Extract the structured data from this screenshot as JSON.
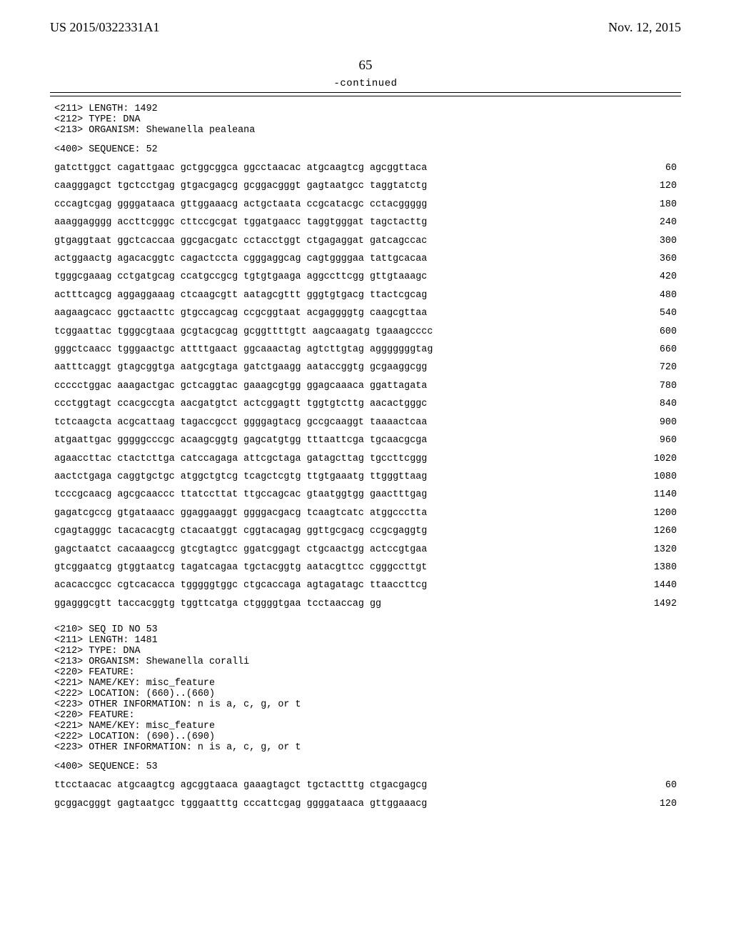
{
  "header": {
    "left": "US 2015/0322331A1",
    "right": "Nov. 12, 2015"
  },
  "pageNumber": "65",
  "continued": "-continued",
  "meta1": [
    "<211> LENGTH: 1492",
    "<212> TYPE: DNA",
    "<213> ORGANISM: Shewanella pealeana"
  ],
  "seqHeader1": "<400> SEQUENCE: 52",
  "sequence1": [
    {
      "t": "gatcttggct cagattgaac gctggcggca ggcctaacac atgcaagtcg agcggttaca",
      "n": "60"
    },
    {
      "t": "caagggagct tgctcctgag gtgacgagcg gcggacgggt gagtaatgcc taggtatctg",
      "n": "120"
    },
    {
      "t": "cccagtcgag ggggataaca gttggaaacg actgctaata ccgcatacgc cctacggggg",
      "n": "180"
    },
    {
      "t": "aaaggagggg accttcgggc cttccgcgat tggatgaacc taggtgggat tagctacttg",
      "n": "240"
    },
    {
      "t": "gtgaggtaat ggctcaccaa ggcgacgatc cctacctggt ctgagaggat gatcagccac",
      "n": "300"
    },
    {
      "t": "actggaactg agacacggtc cagactccta cgggaggcag cagtggggaa tattgcacaa",
      "n": "360"
    },
    {
      "t": "tgggcgaaag cctgatgcag ccatgccgcg tgtgtgaaga aggccttcgg gttgtaaagc",
      "n": "420"
    },
    {
      "t": "actttcagcg aggaggaaag ctcaagcgtt aatagcgttt gggtgtgacg ttactcgcag",
      "n": "480"
    },
    {
      "t": "aagaagcacc ggctaacttc gtgccagcag ccgcggtaat acgaggggtg caagcgttaa",
      "n": "540"
    },
    {
      "t": "tcggaattac tgggcgtaaa gcgtacgcag gcggttttgtt aagcaagatg tgaaagcccc",
      "n": "600"
    },
    {
      "t": "gggctcaacc tgggaactgc attttgaact ggcaaactag agtcttgtag agggggggtag",
      "n": "660"
    },
    {
      "t": "aatttcaggt gtagcggtga aatgcgtaga gatctgaagg aataccggtg gcgaaggcgg",
      "n": "720"
    },
    {
      "t": "ccccctggac aaagactgac gctcaggtac gaaagcgtgg ggagcaaaca ggattagata",
      "n": "780"
    },
    {
      "t": "ccctggtagt ccacgccgta aacgatgtct actcggagtt tggtgtcttg aacactgggc",
      "n": "840"
    },
    {
      "t": "tctcaagcta acgcattaag tagaccgcct ggggagtacg gccgcaaggt taaaactcaa",
      "n": "900"
    },
    {
      "t": "atgaattgac gggggcccgc acaagcggtg gagcatgtgg tttaattcga tgcaacgcga",
      "n": "960"
    },
    {
      "t": "agaaccttac ctactcttga catccagaga attcgctaga gatagcttag tgccttcggg",
      "n": "1020"
    },
    {
      "t": "aactctgaga caggtgctgc atggctgtcg tcagctcgtg ttgtgaaatg ttgggttaag",
      "n": "1080"
    },
    {
      "t": "tcccgcaacg agcgcaaccc ttatccttat ttgccagcac gtaatggtgg gaactttgag",
      "n": "1140"
    },
    {
      "t": "gagatcgccg gtgataaacc ggaggaaggt ggggacgacg tcaagtcatc atggccctta",
      "n": "1200"
    },
    {
      "t": "cgagtagggc tacacacgtg ctacaatggt cggtacagag ggttgcgacg ccgcgaggtg",
      "n": "1260"
    },
    {
      "t": "gagctaatct cacaaagccg gtcgtagtcc ggatcggagt ctgcaactgg actccgtgaa",
      "n": "1320"
    },
    {
      "t": "gtcggaatcg gtggtaatcg tagatcagaa tgctacggtg aatacgttcc cgggccttgt",
      "n": "1380"
    },
    {
      "t": "acacaccgcc cgtcacacca tgggggtggc ctgcaccaga agtagatagc ttaaccttcg",
      "n": "1440"
    },
    {
      "t": "ggagggcgtt taccacggtg tggttcatga ctggggtgaa tcctaaccag gg",
      "n": "1492"
    }
  ],
  "meta2": [
    "<210> SEQ ID NO 53",
    "<211> LENGTH: 1481",
    "<212> TYPE: DNA",
    "<213> ORGANISM: Shewanella coralli",
    "<220> FEATURE:",
    "<221> NAME/KEY: misc_feature",
    "<222> LOCATION: (660)..(660)",
    "<223> OTHER INFORMATION: n is a, c, g, or t",
    "<220> FEATURE:",
    "<221> NAME/KEY: misc_feature",
    "<222> LOCATION: (690)..(690)",
    "<223> OTHER INFORMATION: n is a, c, g, or t"
  ],
  "seqHeader2": "<400> SEQUENCE: 53",
  "sequence2": [
    {
      "t": "ttcctaacac atgcaagtcg agcggtaaca gaaagtagct tgctactttg ctgacgagcg",
      "n": "60"
    },
    {
      "t": "gcggacgggt gagtaatgcc tgggaatttg cccattcgag ggggataaca gttggaaacg",
      "n": "120"
    }
  ]
}
